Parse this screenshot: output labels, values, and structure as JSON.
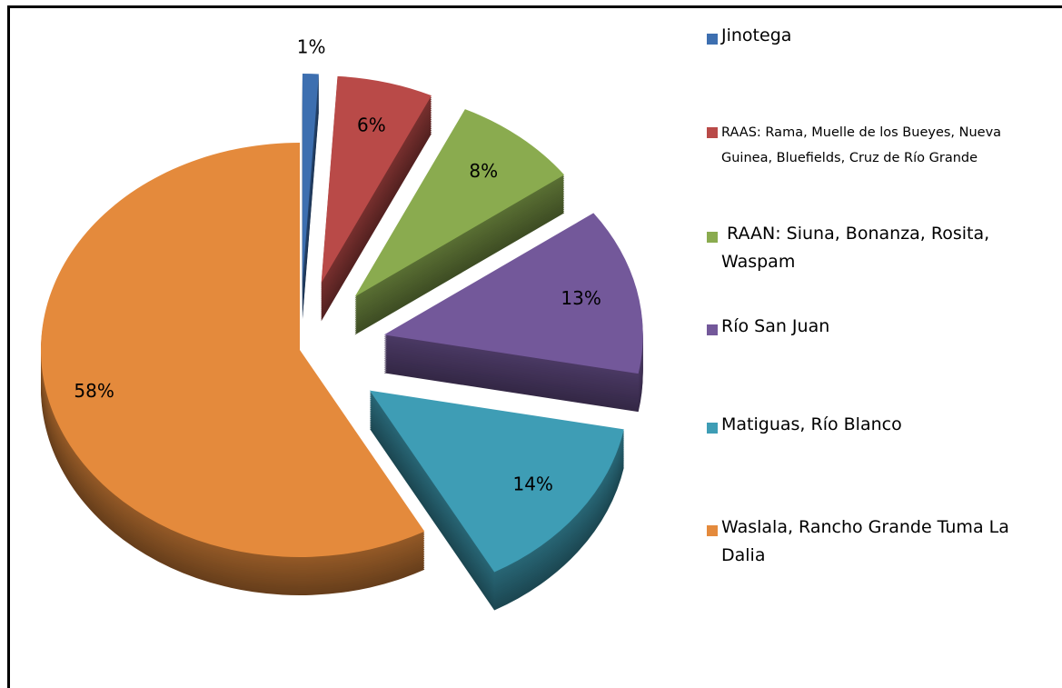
{
  "chart_data": {
    "type": "pie3d",
    "categories": [
      "Jinotega",
      "RAAS: Rama, Muelle de los Bueyes, Nueva Guinea, Bluefields, Cruz de Río Grande",
      " RAAN: Siuna, Bonanza, Rosita, Waspam",
      "Río San Juan",
      "Matiguas, Río Blanco",
      "Waslala, Rancho Grande Tuma La Dalia"
    ],
    "values": [
      1,
      6,
      8,
      13,
      14,
      58
    ],
    "value_labels": [
      "1%",
      "6%",
      "8%",
      "13%",
      "14%",
      "58%"
    ],
    "colors": [
      "#3d6fb0",
      "#b94a48",
      "#8aab4f",
      "#73589a",
      "#3e9db5",
      "#e48a3c"
    ],
    "legend": "right"
  }
}
